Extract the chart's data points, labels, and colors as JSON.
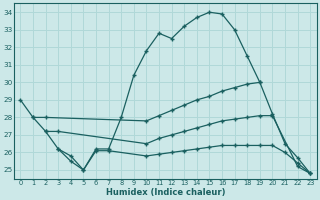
{
  "xlabel": "Humidex (Indice chaleur)",
  "xlim": [
    -0.5,
    23.5
  ],
  "ylim": [
    24.5,
    34.5
  ],
  "xticks": [
    0,
    1,
    2,
    3,
    4,
    5,
    6,
    7,
    8,
    9,
    10,
    11,
    12,
    13,
    14,
    15,
    16,
    17,
    18,
    19,
    20,
    21,
    22,
    23
  ],
  "yticks": [
    25,
    26,
    27,
    28,
    29,
    30,
    31,
    32,
    33,
    34
  ],
  "bg_color": "#cce8e8",
  "line_color": "#1a6060",
  "grid_color": "#b0d8d8",
  "lines": [
    {
      "x": [
        0,
        1,
        2,
        3,
        4,
        5,
        6,
        7,
        8,
        9,
        10,
        11,
        12,
        13,
        14,
        15,
        16,
        17,
        18,
        19
      ],
      "y": [
        29.0,
        28.0,
        27.2,
        26.2,
        25.5,
        25.0,
        26.2,
        26.2,
        28.0,
        30.4,
        31.8,
        32.8,
        32.5,
        33.2,
        33.7,
        34.0,
        33.9,
        33.0,
        31.5,
        30.0
      ]
    },
    {
      "x": [
        1,
        2,
        10,
        11,
        12,
        13,
        14,
        15,
        16,
        17,
        18,
        19,
        20,
        21,
        22,
        23
      ],
      "y": [
        28.0,
        28.0,
        27.8,
        28.1,
        28.4,
        28.7,
        29.0,
        29.2,
        29.5,
        29.7,
        29.9,
        30.0,
        28.2,
        26.5,
        25.7,
        24.8
      ]
    },
    {
      "x": [
        2,
        3,
        10,
        11,
        12,
        13,
        14,
        15,
        16,
        17,
        18,
        19,
        20,
        22,
        23
      ],
      "y": [
        27.2,
        27.2,
        26.5,
        26.8,
        27.0,
        27.2,
        27.4,
        27.6,
        27.8,
        27.9,
        28.0,
        28.1,
        28.1,
        25.2,
        24.8
      ]
    },
    {
      "x": [
        3,
        4,
        5,
        6,
        7,
        10,
        11,
        12,
        13,
        14,
        15,
        16,
        17,
        18,
        19,
        20,
        21,
        22,
        23
      ],
      "y": [
        26.2,
        25.8,
        25.0,
        26.1,
        26.1,
        25.8,
        25.9,
        26.0,
        26.1,
        26.2,
        26.3,
        26.4,
        26.4,
        26.4,
        26.4,
        26.4,
        26.0,
        25.4,
        24.8
      ]
    }
  ]
}
